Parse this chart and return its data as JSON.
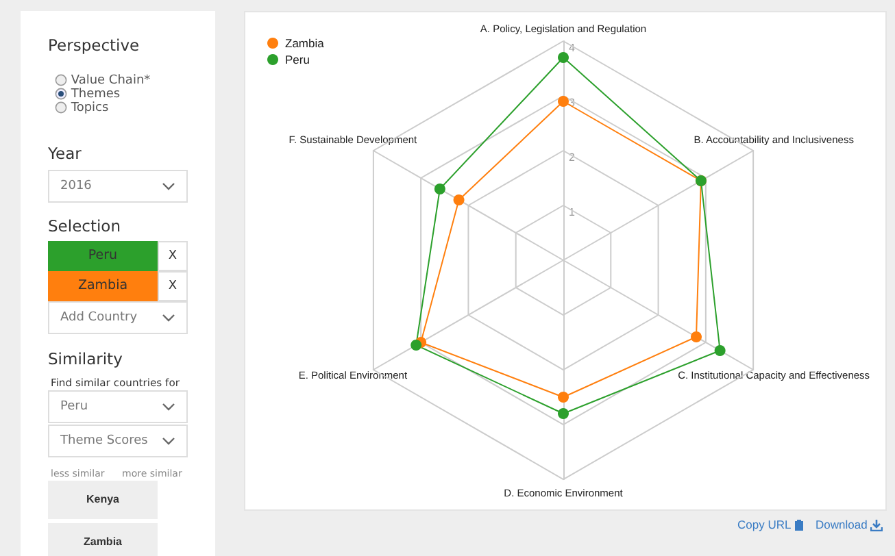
{
  "chart_data": [
    {
      "type": "radar",
      "categories": [
        "A. Policy, Legislation and Regulation",
        "B. Accountability and Inclusiveness",
        "C. Institutional Capacity and Effectiveness",
        "D. Economic Environment",
        "E. Political Environment",
        "F. Sustainable Development"
      ],
      "series": [
        {
          "name": "Zambia",
          "color": "#ff7f0e",
          "values": [
            2.9,
            2.9,
            2.8,
            2.5,
            3.0,
            2.2
          ]
        },
        {
          "name": "Peru",
          "color": "#2ca02c",
          "values": [
            3.7,
            2.9,
            3.3,
            2.8,
            3.1,
            2.6
          ]
        }
      ],
      "ylim": [
        0,
        4
      ],
      "yticks": [
        1,
        2,
        3,
        4
      ],
      "grid": true,
      "legend": "top left",
      "marker": "circle",
      "annotations": [
        "Copy URL",
        "Download"
      ]
    },
    {
      "type": "other",
      "annotations": [
        "Perspective",
        "Value Chain*",
        "Themes",
        "Topics",
        "Year",
        "2016",
        "Selection",
        "Peru",
        "X",
        "Zambia",
        "X",
        "Add Country",
        "Similarity",
        "Find similar countries for",
        "Peru",
        "Theme Scores",
        "less similar",
        "more similar",
        "Kenya",
        "Zambia"
      ]
    }
  ]
}
